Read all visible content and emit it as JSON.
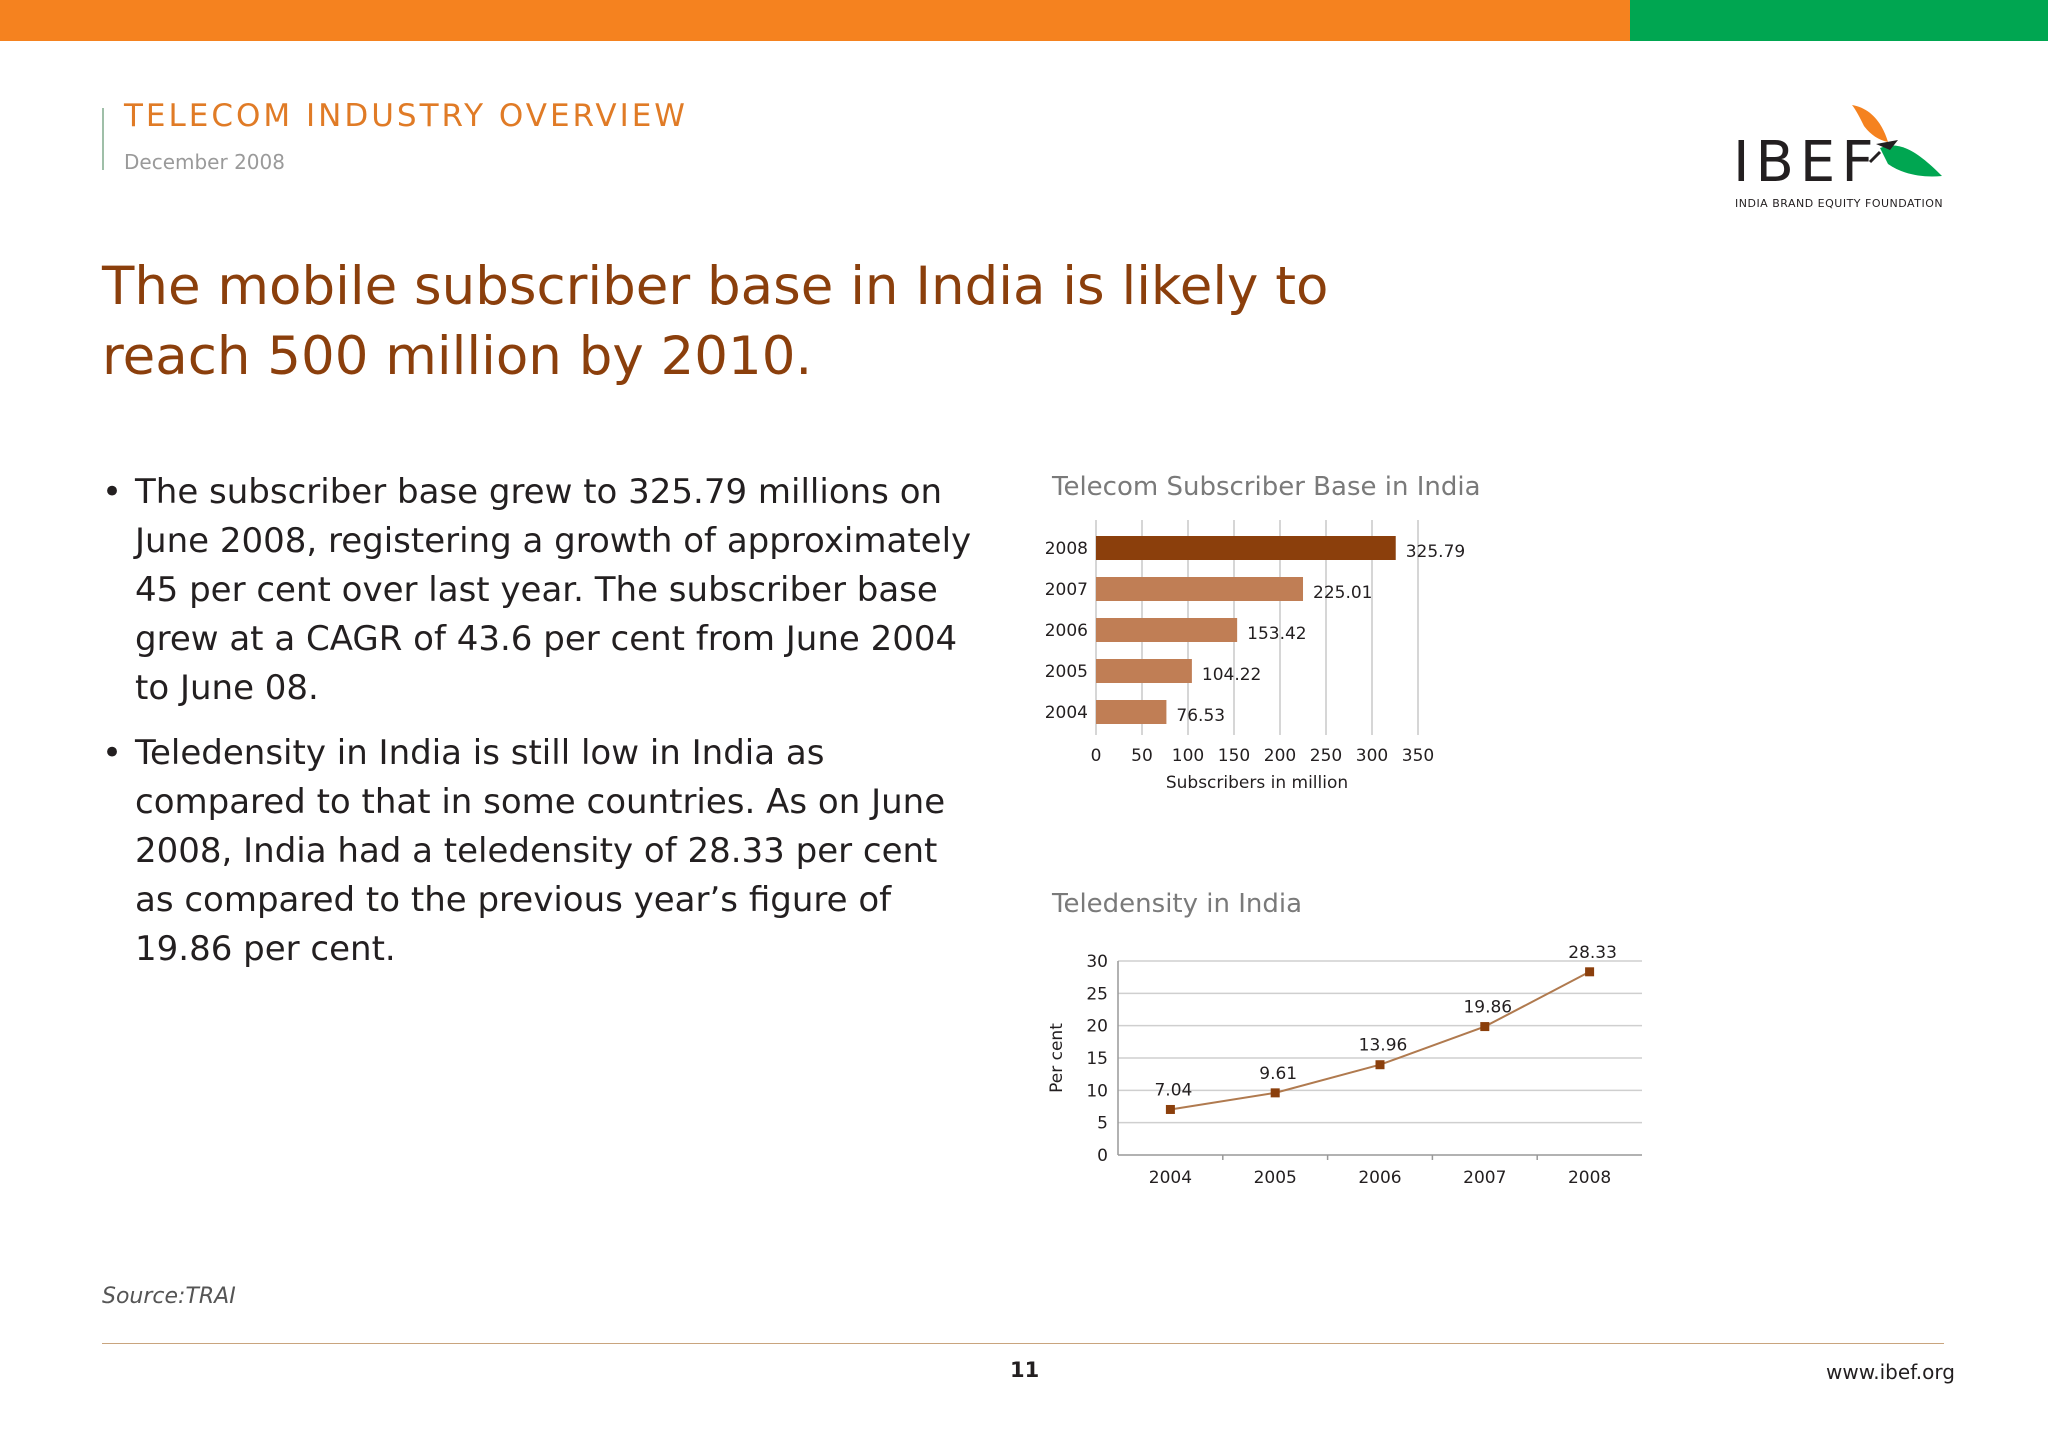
{
  "header": {
    "kicker": "TELECOM INDUSTRY OVERVIEW",
    "date": "December 2008",
    "logo_text": "IBEF",
    "logo_sub": "INDIA BRAND EQUITY FOUNDATION"
  },
  "headline": "The mobile subscriber base in India is likely to reach 500 million by 2010.",
  "bullets": [
    "The subscriber base grew to 325.79 millions on June 2008, registering a growth of approximately 45 per cent over last year. The subscriber base grew at a CAGR of 43.6 per cent from June 2004 to June 08.",
    "Teledensity in India is still low in India as compared to that in some countries. As on June 2008, India had a teledensity of 28.33 per cent as compared to the previous year’s figure of 19.86 per cent."
  ],
  "footer": {
    "source": "Source:TRAI",
    "page": "11",
    "site": "www.ibef.org"
  },
  "colors": {
    "orange": "#F5821F",
    "green": "#00A651",
    "brown_dark": "#8B3F0C",
    "brown_light": "#C07E55"
  },
  "chart_data": [
    {
      "type": "bar",
      "orientation": "horizontal",
      "title": "Telecom Subscriber Base in India",
      "xlabel": "Subscribers in million",
      "ylabel": "",
      "categories": [
        "2008",
        "2007",
        "2006",
        "2005",
        "2004"
      ],
      "values": [
        325.79,
        225.01,
        153.42,
        104.22,
        76.53
      ],
      "value_labels": [
        "325.79",
        "225.01",
        "153.42",
        "104.22",
        "76.53"
      ],
      "xlim": [
        0,
        350
      ],
      "xticks": [
        "0",
        "50",
        "100",
        "150",
        "200",
        "250",
        "300",
        "350"
      ],
      "grid": true,
      "highlight_color": "#8B3F0C",
      "bar_color": "#C07E55"
    },
    {
      "type": "line",
      "title": "Teledensity in India",
      "xlabel": "",
      "ylabel": "Per cent",
      "x": [
        "2004",
        "2005",
        "2006",
        "2007",
        "2008"
      ],
      "values": [
        7.04,
        9.61,
        13.96,
        19.86,
        28.33
      ],
      "value_labels": [
        "7.04",
        "9.61",
        "13.96",
        "19.86",
        "28.33"
      ],
      "ylim": [
        0,
        30
      ],
      "yticks": [
        "0",
        "5",
        "10",
        "15",
        "20",
        "25",
        "30"
      ],
      "grid": true,
      "line_color": "#B07A4F",
      "marker_color": "#8B3F0C"
    }
  ]
}
